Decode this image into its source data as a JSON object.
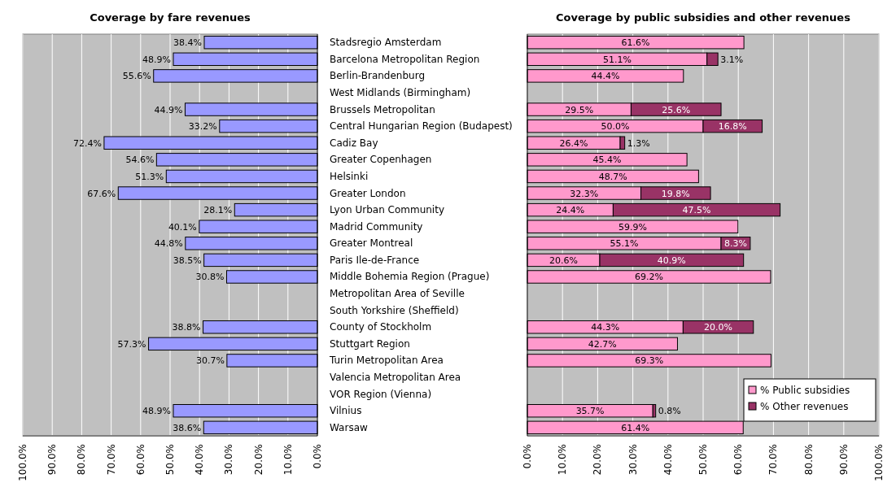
{
  "chart_data": [
    {
      "type": "bar",
      "orientation": "horizontal",
      "title": "Coverage by fare revenues",
      "categories": [
        "Stadsregio Amsterdam",
        "Barcelona Metropolitan Region",
        "Berlin-Brandenburg",
        "West Midlands (Birmingham)",
        "Brussels Metropolitan",
        "Central Hungarian Region (Budapest)",
        "Cadiz Bay",
        "Greater Copenhagen",
        "Helsinki",
        "Greater London",
        "Lyon Urban Community",
        "Madrid Community",
        "Greater Montreal",
        "Paris Ile-de-France",
        "Middle Bohemia Region (Prague)",
        "Metropolitan Area of Seville",
        "South Yorkshire (Sheffield)",
        "County of Stockholm",
        "Stuttgart Region",
        "Turin Metropolitan Area",
        "Valencia Metropolitan Area",
        "VOR Region (Vienna)",
        "Vilnius",
        "Warsaw"
      ],
      "series": [
        {
          "color": "#9999ff",
          "values": [
            38.4,
            48.9,
            55.6,
            null,
            44.9,
            33.2,
            72.4,
            54.6,
            51.3,
            67.6,
            28.1,
            40.1,
            44.8,
            38.5,
            30.8,
            null,
            null,
            38.8,
            57.3,
            30.7,
            null,
            null,
            48.9,
            38.6
          ],
          "value_labels": [
            "38.4%",
            "48.9%",
            "55.6%",
            null,
            "44.9%",
            "33.2%",
            "72.4%",
            "54.6%",
            "51.3%",
            "67.6%",
            "28.1%",
            "40.1%",
            "44.8%",
            "38.5%",
            "30.8%",
            null,
            null,
            "38.8%",
            "57.3%",
            "30.7%",
            null,
            null,
            "48.9%",
            "38.6%"
          ]
        }
      ],
      "xlim": [
        100,
        0
      ],
      "xticks": [
        {
          "value": 100,
          "label": "100.0%"
        },
        {
          "value": 90,
          "label": "90.0%"
        },
        {
          "value": 80,
          "label": "80.0%"
        },
        {
          "value": 70,
          "label": "70.0%"
        },
        {
          "value": 60,
          "label": "60.0%"
        },
        {
          "value": 50,
          "label": "50.0%"
        },
        {
          "value": 40,
          "label": "40.0%"
        },
        {
          "value": 30,
          "label": "30.0%"
        },
        {
          "value": 20,
          "label": "20.0%"
        },
        {
          "value": 10,
          "label": "10.0%"
        },
        {
          "value": 0,
          "label": "0.0%"
        }
      ],
      "grid": "x",
      "legend": false
    },
    {
      "type": "bar",
      "orientation": "horizontal",
      "stacked": true,
      "title": "Coverage by public subsidies and other revenues",
      "categories": [
        null,
        null,
        null,
        null,
        null,
        null,
        null,
        null,
        null,
        null,
        null,
        null,
        null,
        null,
        null,
        null,
        null,
        null,
        null,
        null,
        null,
        null,
        null,
        null
      ],
      "tick_labels": "x",
      "series": [
        {
          "name": "% Public subsidies",
          "color": "#ff99cc",
          "values": [
            61.6,
            51.1,
            44.4,
            null,
            29.5,
            50.0,
            26.4,
            45.4,
            48.7,
            32.3,
            24.4,
            59.9,
            55.1,
            20.6,
            69.2,
            null,
            null,
            44.3,
            42.7,
            69.3,
            null,
            null,
            35.7,
            61.4
          ],
          "value_labels": [
            "61.6%",
            "51.1%",
            "44.4%",
            null,
            "29.5%",
            "50.0%",
            "26.4%",
            "45.4%",
            "48.7%",
            "32.3%",
            "24.4%",
            "59.9%",
            "55.1%",
            "20.6%",
            "69.2%",
            null,
            null,
            "44.3%",
            "42.7%",
            "69.3%",
            null,
            null,
            "35.7%",
            "61.4%"
          ]
        },
        {
          "name": "% Other revenues",
          "color": "#993366",
          "values": [
            null,
            3.1,
            null,
            null,
            25.6,
            16.8,
            1.3,
            null,
            null,
            19.8,
            47.5,
            null,
            8.3,
            40.9,
            null,
            null,
            null,
            20.0,
            null,
            null,
            null,
            null,
            0.8,
            null
          ],
          "value_labels": [
            null,
            "3.1%",
            null,
            null,
            "25.6%",
            "16.8%",
            "1.3%",
            null,
            null,
            "19.8%",
            "47.5%",
            null,
            "8.3%",
            "40.9%",
            null,
            null,
            null,
            "20.0%",
            null,
            null,
            null,
            null,
            "0.8%",
            null
          ]
        }
      ],
      "xlim": [
        0,
        100
      ],
      "xticks": [
        {
          "value": 0,
          "label": "0.0%"
        },
        {
          "value": 10,
          "label": "10.0%"
        },
        {
          "value": 20,
          "label": "20.0%"
        },
        {
          "value": 30,
          "label": "30.0%"
        },
        {
          "value": 40,
          "label": "40.0%"
        },
        {
          "value": 50,
          "label": "50.0%"
        },
        {
          "value": 60,
          "label": "60.0%"
        },
        {
          "value": 70,
          "label": "70.0%"
        },
        {
          "value": 80,
          "label": "80.0%"
        },
        {
          "value": 90,
          "label": "90.0%"
        },
        {
          "value": 100,
          "label": "100.0%"
        }
      ],
      "grid": "x",
      "legend": "bottom right"
    }
  ]
}
